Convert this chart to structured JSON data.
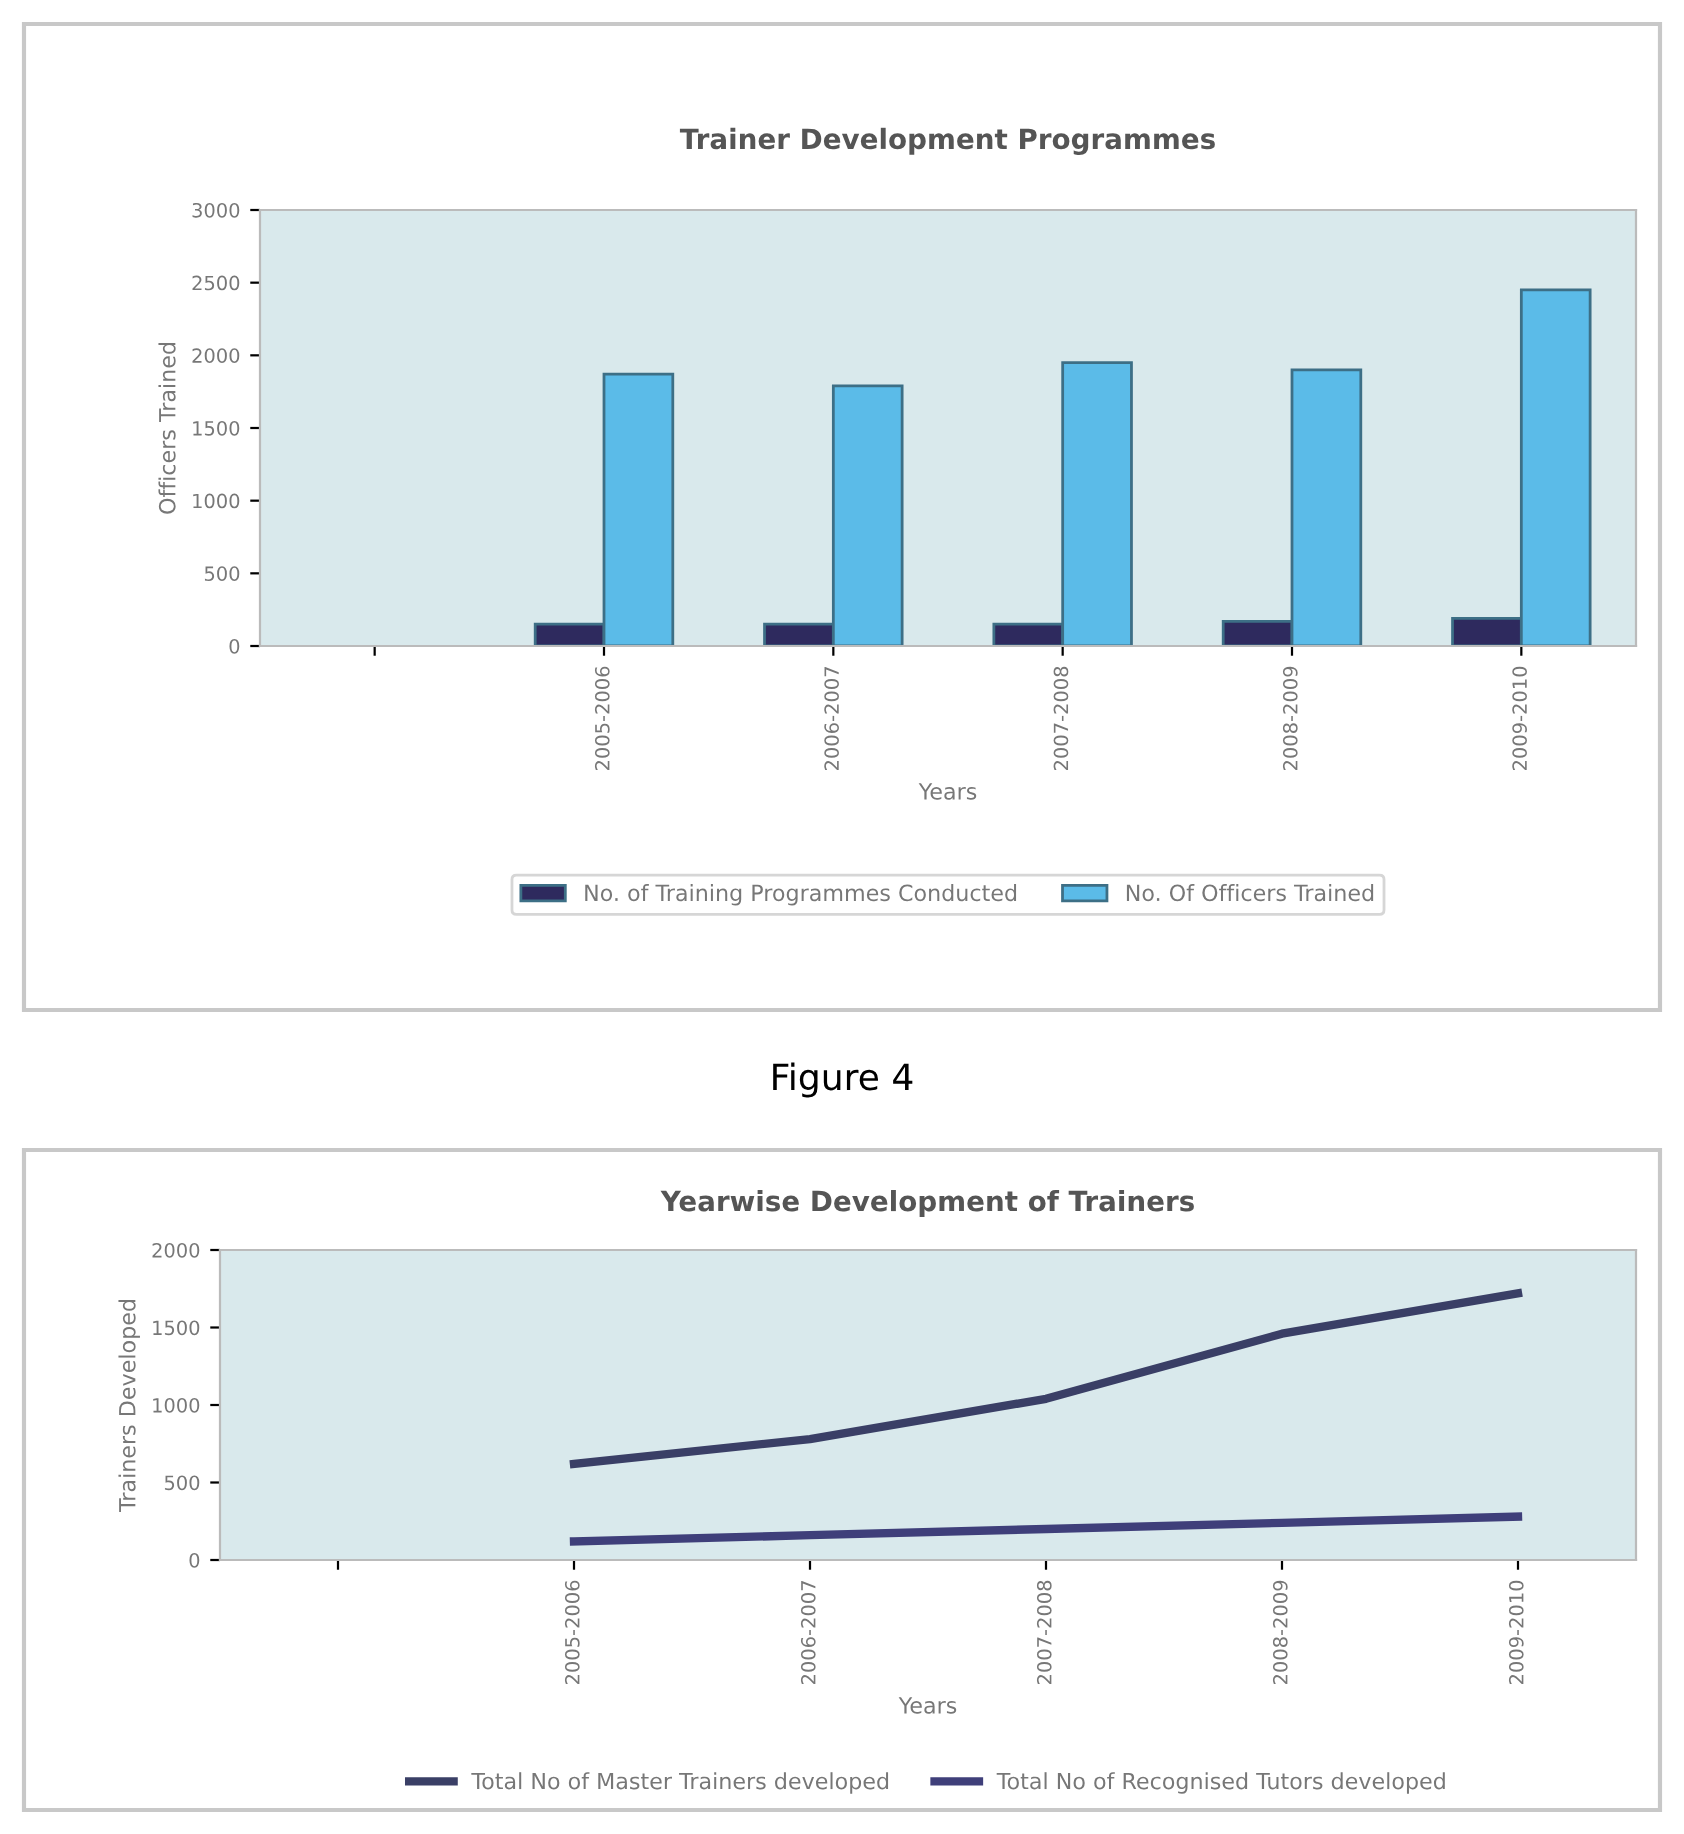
{
  "chart_data": [
    {
      "type": "bar",
      "title": "Trainer Development Programmes",
      "xlabel": "Years",
      "ylabel": "Officers Trained",
      "categories": [
        null,
        "2005-2006",
        "2006-2007",
        "2007-2008",
        "2008-2009",
        "2009-2010"
      ],
      "series": [
        {
          "name": "No. of Training Programmes Conducted",
          "color": "#2e2a5e",
          "values": [
            null,
            150,
            150,
            150,
            170,
            190
          ]
        },
        {
          "name": "No. Of Officers Trained",
          "color": "#5bbbe8",
          "values": [
            null,
            1870,
            1790,
            1950,
            1900,
            2450
          ]
        }
      ],
      "ylim": [
        0,
        3000
      ],
      "yticks": [
        0,
        500,
        1000,
        1500,
        2000,
        2500,
        3000
      ],
      "grid": false,
      "legend": "bottom",
      "annotations": [
        "Figure 4"
      ]
    },
    {
      "type": "line",
      "title": "Yearwise Development of Trainers",
      "xlabel": "Years",
      "ylabel": "Trainers Developed",
      "categories": [
        null,
        "2005-2006",
        "2006-2007",
        "2007-2008",
        "2008-2009",
        "2009-2010"
      ],
      "series": [
        {
          "name": "Total No of Master Trainers developed",
          "color": "#3a3f66",
          "values": [
            null,
            620,
            780,
            1040,
            1460,
            1720
          ]
        },
        {
          "name": "Total No of Recognised Tutors developed",
          "color": "#3f3f7a",
          "values": [
            null,
            120,
            160,
            200,
            240,
            280
          ]
        }
      ],
      "ylim": [
        0,
        2000
      ],
      "yticks": [
        0,
        500,
        1000,
        1500,
        2000
      ],
      "grid": false,
      "legend": "bottom",
      "marker": "none",
      "line_style": "solid"
    }
  ]
}
